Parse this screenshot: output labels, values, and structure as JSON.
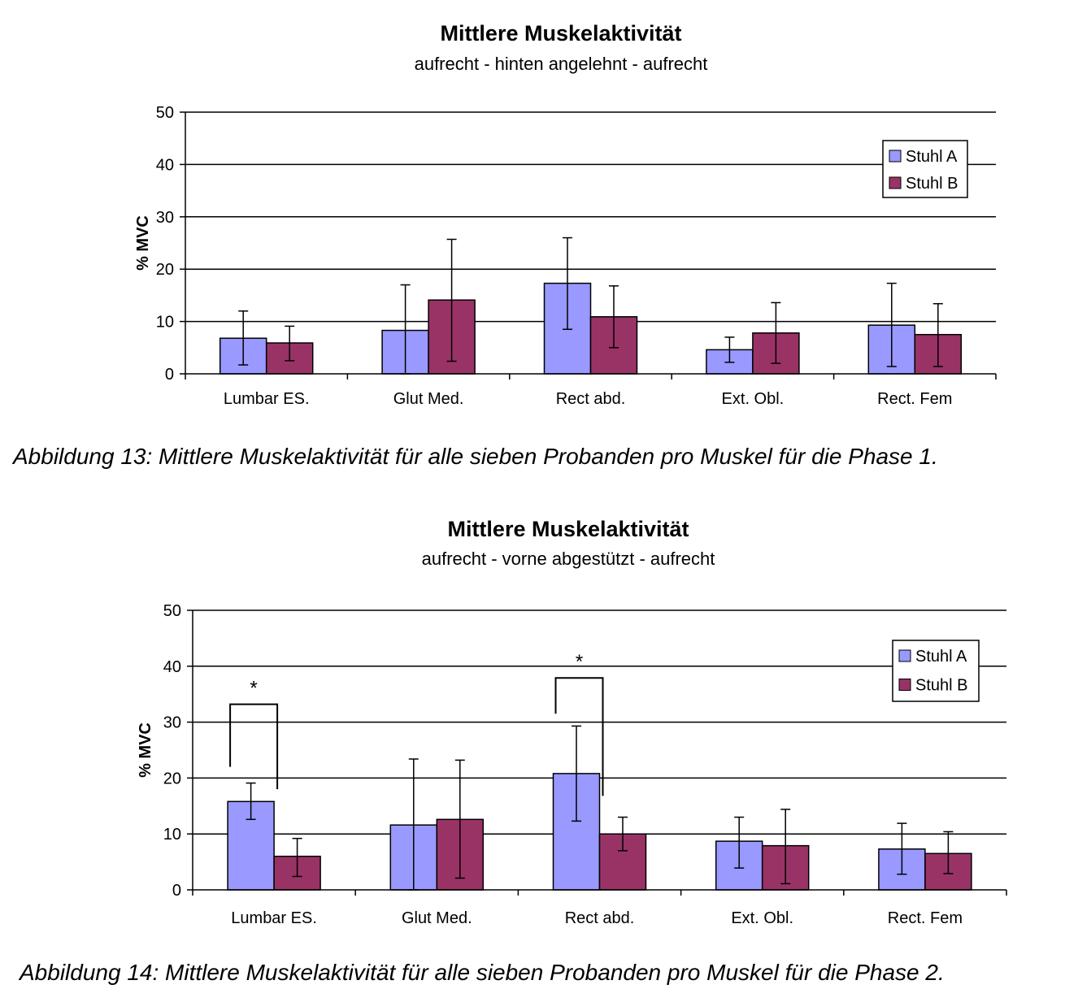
{
  "figures": [
    {
      "caption": "Abbildung 13: Mittlere Muskelaktivität für alle sieben Probanden pro Muskel für die Phase 1.",
      "chart": {
        "type": "bar",
        "title": "Mittlere Muskelaktivität",
        "subtitle": "aufrecht - hinten angelehnt - aufrecht",
        "ylabel": "% MVC",
        "xlabel": "",
        "ylim": [
          0,
          50
        ],
        "yticks": [
          0,
          10,
          20,
          30,
          40,
          50
        ],
        "grid": true,
        "legend_position": "top-right",
        "categories": [
          "Lumbar ES.",
          "Glut Med.",
          "Rect abd.",
          "Ext. Obl.",
          "Rect. Fem"
        ],
        "series": [
          {
            "name": "Stuhl A",
            "color": "#9999ff",
            "values": [
              6.8,
              8.3,
              17.3,
              4.6,
              9.3
            ],
            "error_low": [
              1.7,
              0,
              8.5,
              2.2,
              1.4
            ],
            "error_high": [
              12.0,
              17.0,
              26.0,
              7.0,
              17.3
            ]
          },
          {
            "name": "Stuhl B",
            "color": "#993366",
            "values": [
              5.9,
              14.1,
              10.9,
              7.8,
              7.5
            ],
            "error_low": [
              2.5,
              2.4,
              5.0,
              2.0,
              1.4
            ],
            "error_high": [
              9.1,
              25.7,
              16.8,
              13.6,
              13.4
            ]
          }
        ],
        "significance": []
      }
    },
    {
      "caption": "Abbildung 14: Mittlere Muskelaktivität für alle sieben Probanden pro Muskel für die Phase 2.",
      "chart": {
        "type": "bar",
        "title": "Mittlere Muskelaktivität",
        "subtitle": "aufrecht - vorne abgestützt - aufrecht",
        "ylabel": "% MVC",
        "xlabel": "",
        "ylim": [
          0,
          50
        ],
        "yticks": [
          0,
          10,
          20,
          30,
          40,
          50
        ],
        "grid": true,
        "legend_position": "top-right",
        "categories": [
          "Lumbar ES.",
          "Glut Med.",
          "Rect abd.",
          "Ext. Obl.",
          "Rect. Fem"
        ],
        "series": [
          {
            "name": "Stuhl A",
            "color": "#9999ff",
            "values": [
              15.8,
              11.6,
              20.8,
              8.7,
              7.3
            ],
            "error_low": [
              12.6,
              0,
              12.3,
              3.9,
              2.8
            ],
            "error_high": [
              19.1,
              23.4,
              29.3,
              13.0,
              11.9
            ]
          },
          {
            "name": "Stuhl B",
            "color": "#993366",
            "values": [
              6.0,
              12.6,
              10.0,
              7.9,
              6.5
            ],
            "error_low": [
              2.4,
              2.1,
              7.0,
              1.1,
              2.9
            ],
            "error_high": [
              9.2,
              23.2,
              13.0,
              14.4,
              10.4
            ]
          }
        ],
        "significance": [
          {
            "category_index": 0,
            "label": "*",
            "left_start": 22,
            "right_start": 18,
            "bar_y": 33.2
          },
          {
            "category_index": 2,
            "label": "*",
            "left_start": 31.5,
            "right_start": 16.8,
            "bar_y": 37.9
          }
        ]
      }
    }
  ],
  "chart_data": [
    {
      "type": "bar",
      "title": "Mittlere Muskelaktivität",
      "subtitle": "aufrecht - hinten angelehnt - aufrecht",
      "ylabel": "% MVC",
      "ylim": [
        0,
        50
      ],
      "categories": [
        "Lumbar ES.",
        "Glut Med.",
        "Rect abd.",
        "Ext. Obl.",
        "Rect. Fem"
      ],
      "series": [
        {
          "name": "Stuhl A",
          "values": [
            6.8,
            8.3,
            17.3,
            4.6,
            9.3
          ]
        },
        {
          "name": "Stuhl B",
          "values": [
            5.9,
            14.1,
            10.9,
            7.8,
            7.5
          ]
        }
      ]
    },
    {
      "type": "bar",
      "title": "Mittlere Muskelaktivität",
      "subtitle": "aufrecht - vorne abgestützt - aufrecht",
      "ylabel": "% MVC",
      "ylim": [
        0,
        50
      ],
      "categories": [
        "Lumbar ES.",
        "Glut Med.",
        "Rect abd.",
        "Ext. Obl.",
        "Rect. Fem"
      ],
      "series": [
        {
          "name": "Stuhl A",
          "values": [
            15.8,
            11.6,
            20.8,
            8.7,
            7.3
          ]
        },
        {
          "name": "Stuhl B",
          "values": [
            6.0,
            12.6,
            10.0,
            7.9,
            6.5
          ]
        }
      ]
    }
  ]
}
